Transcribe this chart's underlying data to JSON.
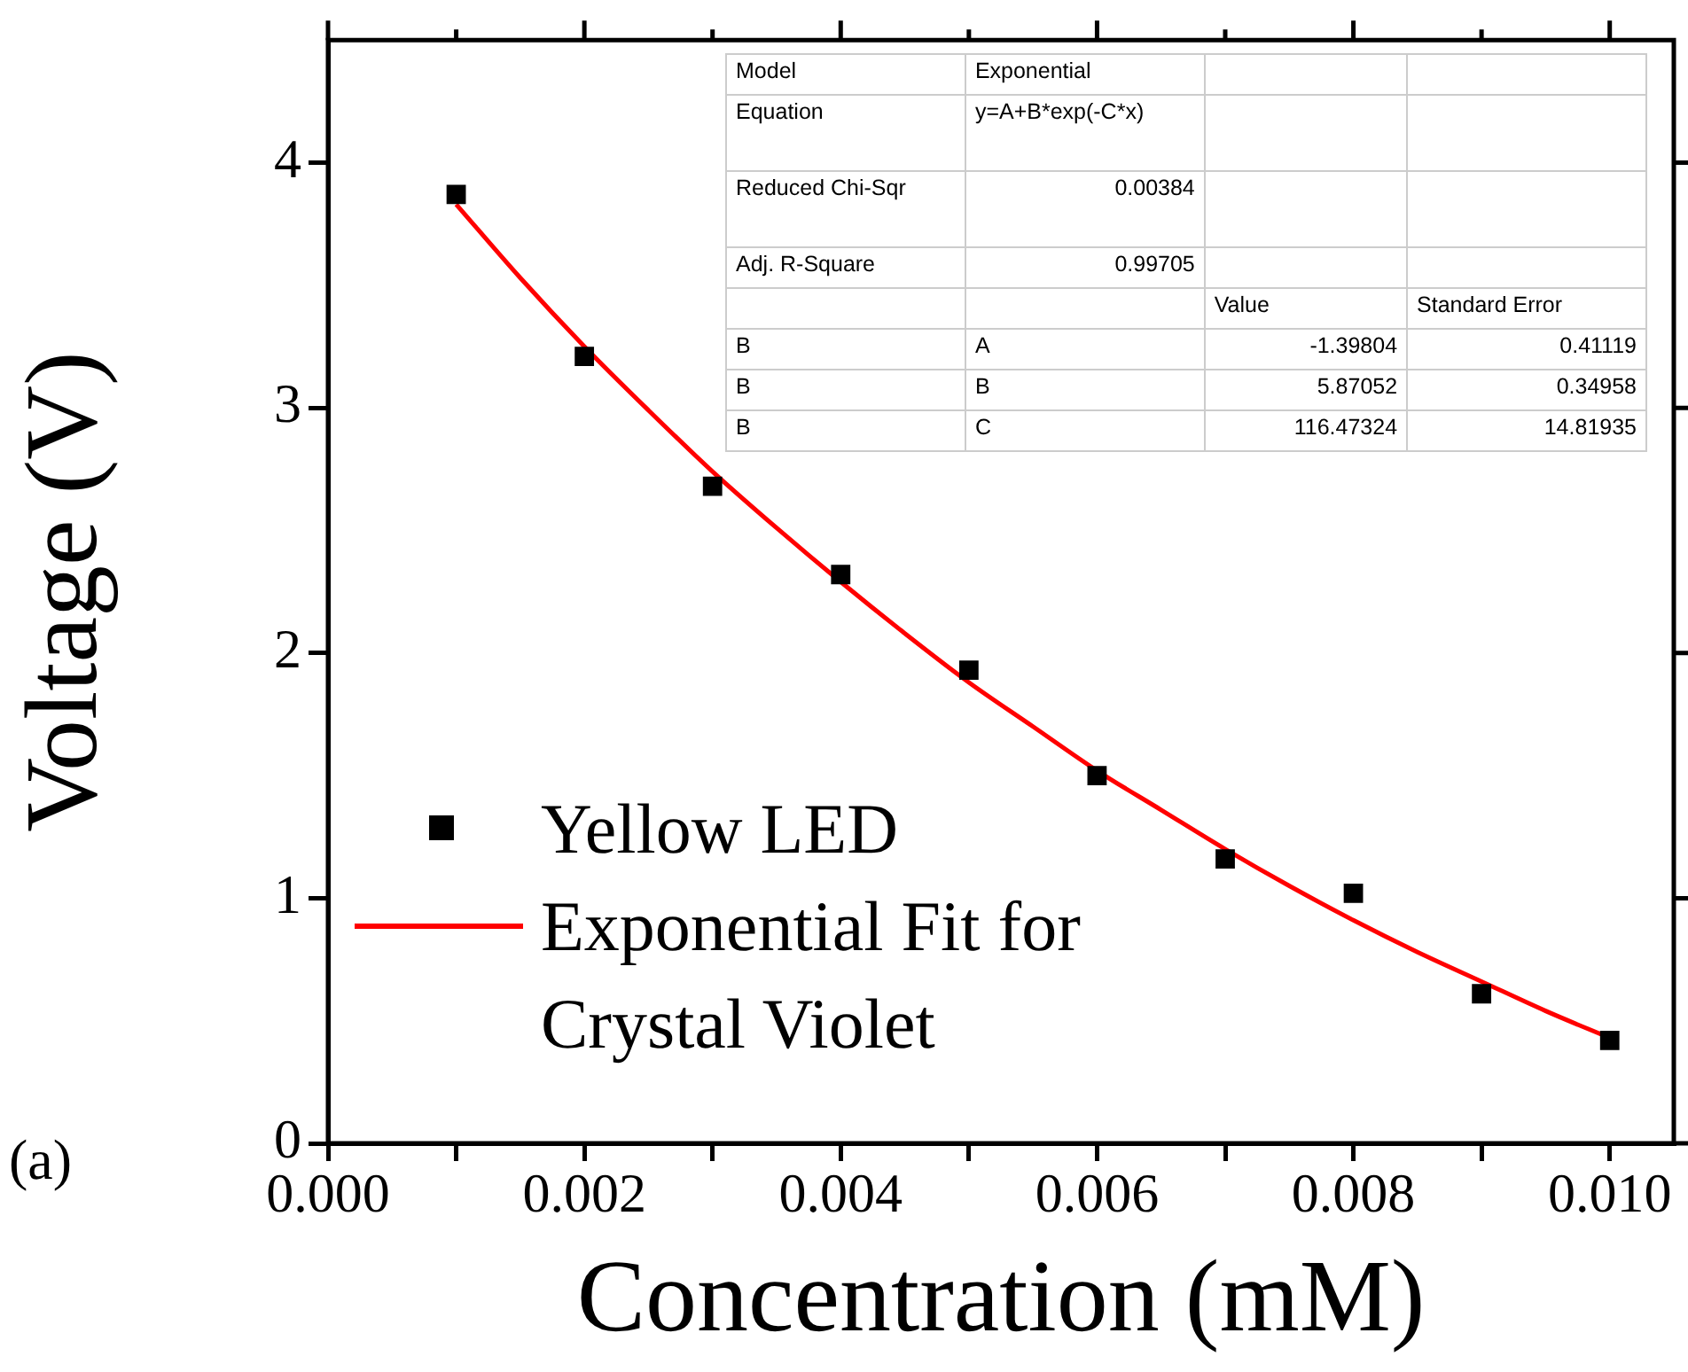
{
  "chart_data": {
    "type": "scatter",
    "xlabel": "Concentration (mM)",
    "ylabel": "Voltage (V)",
    "xlim": [
      0,
      0.0105
    ],
    "ylim": [
      0,
      4.5
    ],
    "xticks": [
      {
        "value": 0,
        "label": "0.000"
      },
      {
        "value": 0.001,
        "label": null
      },
      {
        "value": 0.002,
        "label": "0.002"
      },
      {
        "value": 0.003,
        "label": null
      },
      {
        "value": 0.004,
        "label": "0.004"
      },
      {
        "value": 0.005,
        "label": null
      },
      {
        "value": 0.006,
        "label": "0.006"
      },
      {
        "value": 0.007,
        "label": null
      },
      {
        "value": 0.008,
        "label": "0.008"
      },
      {
        "value": 0.009,
        "label": null
      },
      {
        "value": 0.01,
        "label": "0.010"
      }
    ],
    "yticks": [
      0,
      1,
      2,
      3,
      4
    ],
    "grid": false,
    "legend": "bottom left",
    "series": [
      {
        "name": "Yellow LED",
        "type": "scatter",
        "marker": "square",
        "color": "#000000",
        "x": [
          0.001,
          0.002,
          0.003,
          0.004,
          0.005,
          0.006,
          0.007,
          0.008,
          0.009,
          0.01
        ],
        "values": [
          3.87,
          3.21,
          2.68,
          2.32,
          1.93,
          1.5,
          1.16,
          1.02,
          0.61,
          0.42
        ]
      },
      {
        "name": "Exponential Fit for Crystal Violet",
        "type": "line",
        "marker": "none",
        "color": "#ff0000",
        "x": [
          0.001,
          0.0015,
          0.002,
          0.0025,
          0.003,
          0.0035,
          0.004,
          0.0045,
          0.005,
          0.0055,
          0.006,
          0.0065,
          0.007,
          0.0075,
          0.008,
          0.0085,
          0.009,
          0.0095,
          0.01
        ],
        "values": [
          3.83,
          3.53,
          3.25,
          2.99,
          2.74,
          2.51,
          2.29,
          2.08,
          1.88,
          1.7,
          1.52,
          1.36,
          1.2,
          1.05,
          0.91,
          0.78,
          0.66,
          0.54,
          0.43
        ]
      }
    ],
    "annotations": [
      "(a)",
      "Model",
      "Exponential",
      "Equation",
      "y=A+B*exp(-C*x)",
      "Reduced Chi-Sqr",
      "0.00384",
      "Adj. R-Square",
      "0.99705",
      "Value",
      "Standard Error",
      "B",
      "A",
      "-1.39804",
      "0.41119",
      "B",
      "B",
      "5.87052",
      "0.34958",
      "B",
      "C",
      "116.47324",
      "14.81935"
    ]
  }
}
